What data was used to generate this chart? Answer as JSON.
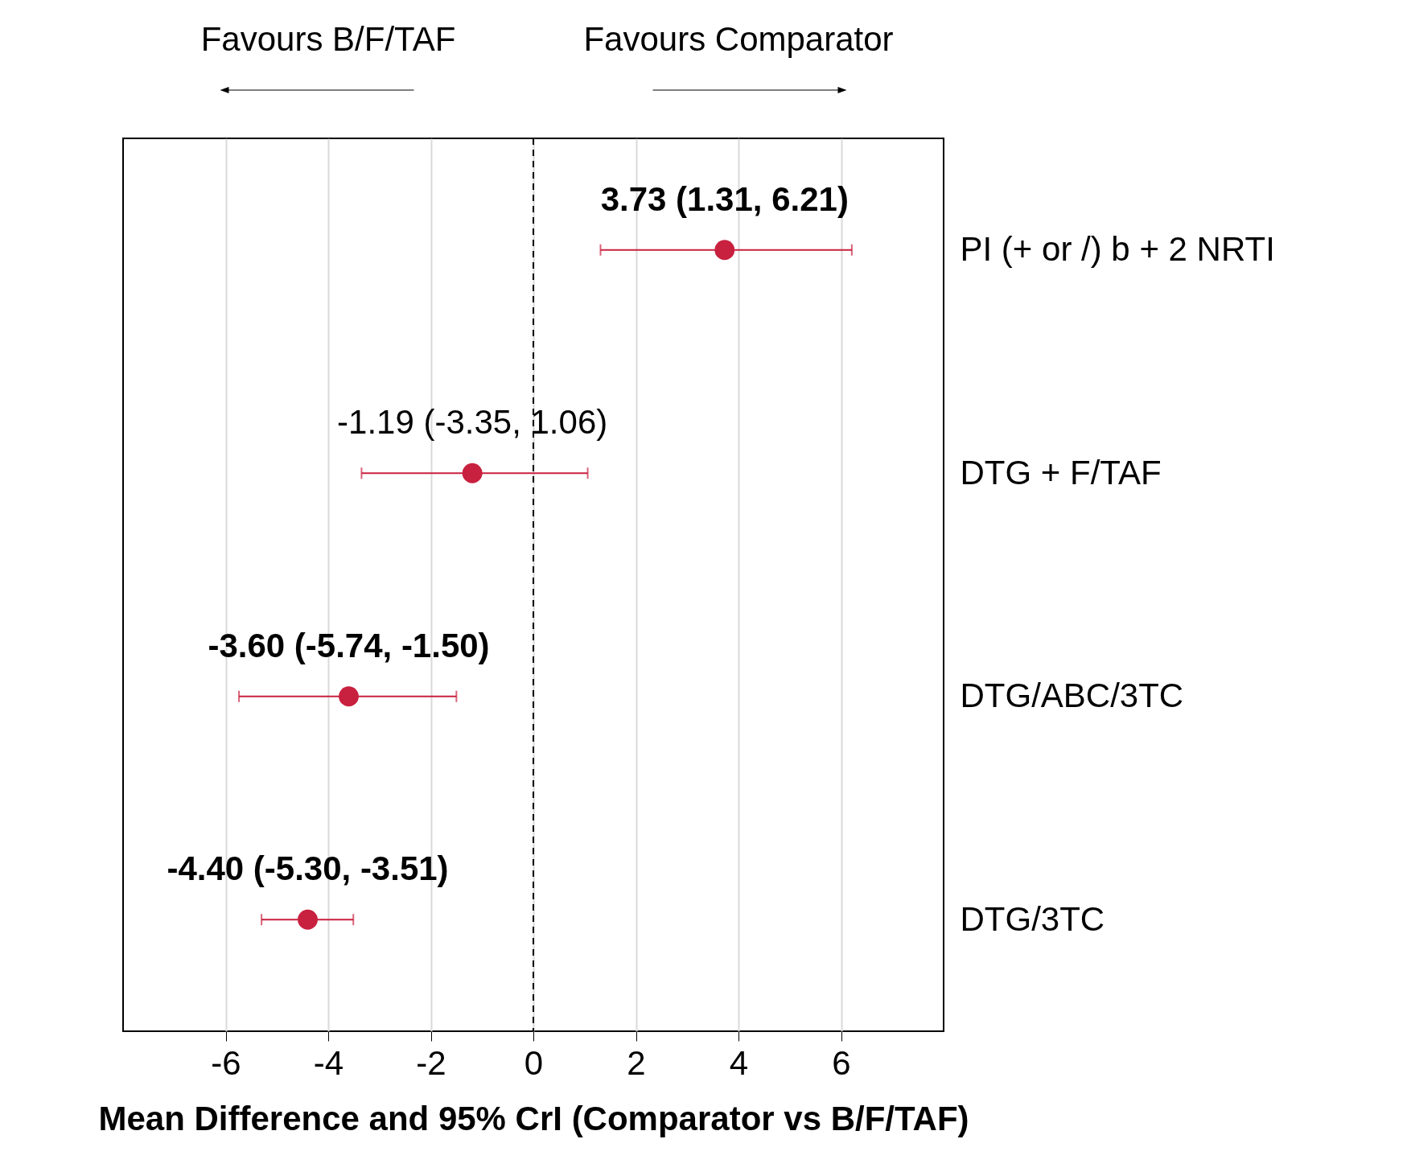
{
  "chart_data": {
    "type": "scatter",
    "orientation": "horizontal",
    "xlabel": "Mean Difference and 95% CrI (Comparator vs B/F/TAF)",
    "annotations": [
      "Favours B/F/TAF",
      "Favours Comparator"
    ],
    "categories": [
      "PI (+ or /) b + 2 NRTI",
      "DTG + F/TAF",
      "DTG/ABC/3TC",
      "DTG/3TC"
    ],
    "series": [
      {
        "color": "#c8203f",
        "values": [
          3.73,
          -1.19,
          -3.6,
          -4.4
        ],
        "errors": [
          [
            1.31,
            6.21
          ],
          [
            -3.35,
            1.06
          ],
          [
            -5.74,
            -1.5
          ],
          [
            -5.3,
            -3.51
          ]
        ],
        "value_labels": [
          "3.73 (1.31, 6.21)",
          "-1.19 (-3.35, 1.06)",
          "-3.60 (-5.74, -1.50)",
          "-4.40 (-5.30, -3.51)"
        ]
      }
    ],
    "xlim": [
      -8,
      8
    ],
    "xticks": [
      -6,
      -4,
      -2,
      0,
      2,
      4,
      6
    ],
    "grid": "x",
    "marker": "circle",
    "ref_lines": [
      {
        "axis": "x",
        "value": 0,
        "line_style": "dashed",
        "color": "#000000"
      }
    ]
  }
}
